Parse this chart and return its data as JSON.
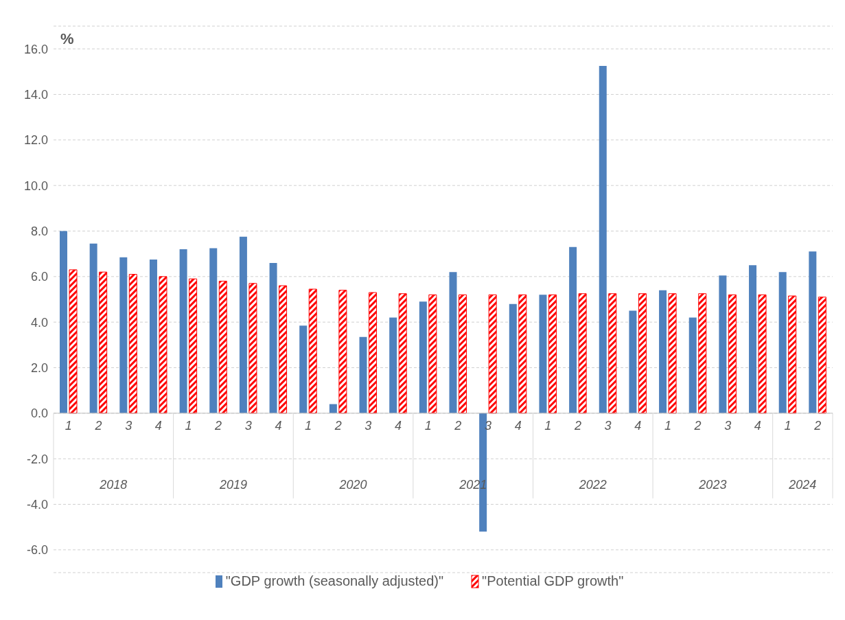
{
  "chart_data": {
    "type": "bar",
    "ylabel": "%",
    "categories": [
      "1",
      "2",
      "3",
      "4",
      "1",
      "2",
      "3",
      "4",
      "1",
      "2",
      "3",
      "4",
      "1",
      "2",
      "3",
      "4",
      "1",
      "2",
      "3",
      "4",
      "1",
      "2",
      "3",
      "4",
      "1",
      "2"
    ],
    "annotations": [
      "2018",
      "2019",
      "2020",
      "2021",
      "2022",
      "2023",
      "2024"
    ],
    "series": [
      {
        "name": "\"GDP growth (seasonally adjusted)\"",
        "color": "#4f81bd",
        "values": [
          8.0,
          7.45,
          6.85,
          6.75,
          7.2,
          7.25,
          7.75,
          6.6,
          3.85,
          0.4,
          3.35,
          4.2,
          4.9,
          6.2,
          -5.2,
          4.8,
          5.2,
          7.3,
          15.25,
          4.5,
          5.4,
          4.2,
          6.05,
          6.5,
          6.2,
          7.1
        ]
      },
      {
        "name": "\"Potential GDP growth\"",
        "color": "#ff0000",
        "values": [
          6.3,
          6.2,
          6.1,
          6.0,
          5.9,
          5.8,
          5.7,
          5.6,
          5.45,
          5.4,
          5.3,
          5.25,
          5.2,
          5.2,
          5.2,
          5.2,
          5.2,
          5.25,
          5.25,
          5.25,
          5.25,
          5.25,
          5.2,
          5.2,
          5.15,
          5.1
        ]
      }
    ],
    "ylim": [
      -7,
      17
    ],
    "yticks": [
      {
        "value": -6,
        "label": "-6.0"
      },
      {
        "value": -4,
        "label": "-4.0"
      },
      {
        "value": -2,
        "label": "-2.0"
      },
      {
        "value": 0,
        "label": "0.0"
      },
      {
        "value": 2,
        "label": "2.0"
      },
      {
        "value": 4,
        "label": "4.0"
      },
      {
        "value": 6,
        "label": "6.0"
      },
      {
        "value": 8,
        "label": "8.0"
      },
      {
        "value": 10,
        "label": "10.0"
      },
      {
        "value": 12,
        "label": "12.0"
      },
      {
        "value": 14,
        "label": "14.0"
      },
      {
        "value": 16,
        "label": "16.0"
      }
    ],
    "grid": "y",
    "legend": "bottom"
  }
}
